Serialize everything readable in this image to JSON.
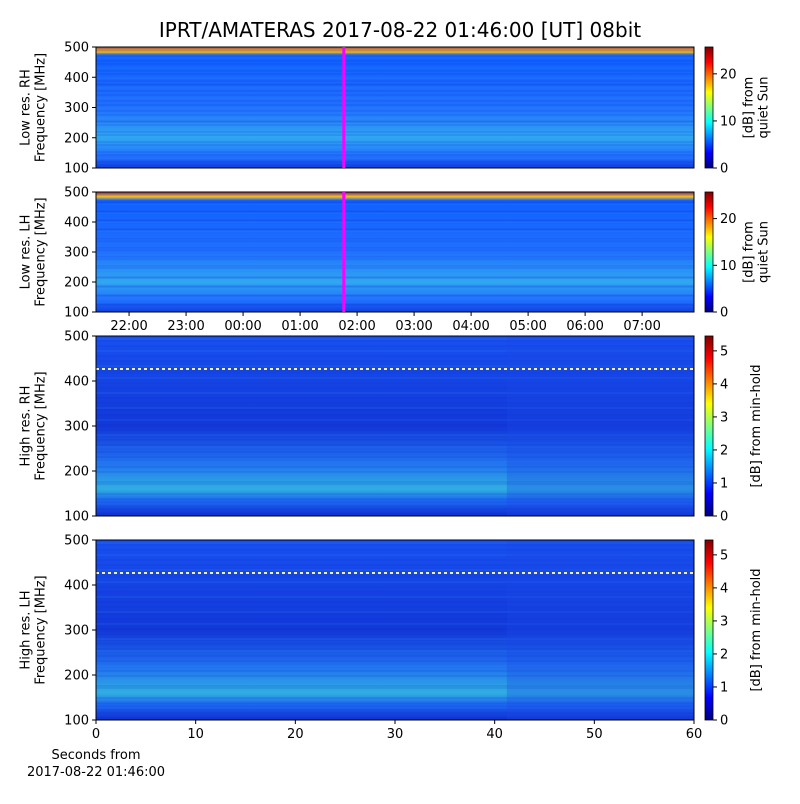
{
  "title": "IPRT/AMATERAS 2017-08-22 01:46:00 [UT]   08bit",
  "chart_data": [
    {
      "type": "spectrogram",
      "ylabel": [
        "Low res. RH",
        "Frequency [MHz]"
      ],
      "ylim": [
        100,
        500
      ],
      "yticks": [
        100,
        200,
        300,
        400,
        500
      ],
      "xlim": [
        21.42,
        31.91
      ],
      "cursor_x": 25.767,
      "cursor_color": "#ff00ff",
      "colorbar_label": [
        "[dB] from",
        "quiet Sun"
      ],
      "clim": [
        0,
        25.7
      ],
      "cticks": [
        0,
        10,
        20
      ]
    },
    {
      "type": "spectrogram",
      "ylabel": [
        "Low res. LH",
        "Frequency [MHz]"
      ],
      "ylim": [
        100,
        500
      ],
      "yticks": [
        100,
        200,
        300,
        400,
        500
      ],
      "xlim": [
        21.42,
        31.91
      ],
      "cursor_x": 25.767,
      "cursor_color": "#ff00ff",
      "xticks": [
        {
          "value": 22,
          "label": "22:00"
        },
        {
          "value": 23,
          "label": "23:00"
        },
        {
          "value": 24,
          "label": "00:00"
        },
        {
          "value": 25,
          "label": "01:00"
        },
        {
          "value": 26,
          "label": "02:00"
        },
        {
          "value": 27,
          "label": "03:00"
        },
        {
          "value": 28,
          "label": "04:00"
        },
        {
          "value": 29,
          "label": "05:00"
        },
        {
          "value": 30,
          "label": "06:00"
        },
        {
          "value": 31,
          "label": "07:00"
        }
      ],
      "colorbar_label": [
        "[dB] from",
        "quiet Sun"
      ],
      "clim": [
        0,
        25.7
      ],
      "cticks": [
        0,
        10,
        20
      ]
    },
    {
      "type": "spectrogram",
      "ylabel": [
        "High res. RH",
        "Frequency [MHz]"
      ],
      "ylim": [
        100,
        500
      ],
      "yticks": [
        100,
        200,
        300,
        400,
        500
      ],
      "xlim": [
        0,
        60
      ],
      "colorbar_label": [
        "[dB] from min-hold"
      ],
      "clim": [
        0,
        5.45
      ],
      "cticks": [
        0,
        1,
        2,
        3,
        4,
        5
      ]
    },
    {
      "type": "spectrogram",
      "ylabel": [
        "High res. LH",
        "Frequency [MHz]"
      ],
      "ylim": [
        100,
        500
      ],
      "yticks": [
        100,
        200,
        300,
        400,
        500
      ],
      "xlim": [
        0,
        60
      ],
      "xticks": [
        0,
        10,
        20,
        30,
        40,
        50,
        60
      ],
      "xlabel": [
        "Seconds from",
        "2017-08-22 01:46:00"
      ],
      "colorbar_label": [
        "[dB] from min-hold"
      ],
      "clim": [
        0,
        5.45
      ],
      "cticks": [
        0,
        1,
        2,
        3,
        4,
        5
      ]
    }
  ]
}
